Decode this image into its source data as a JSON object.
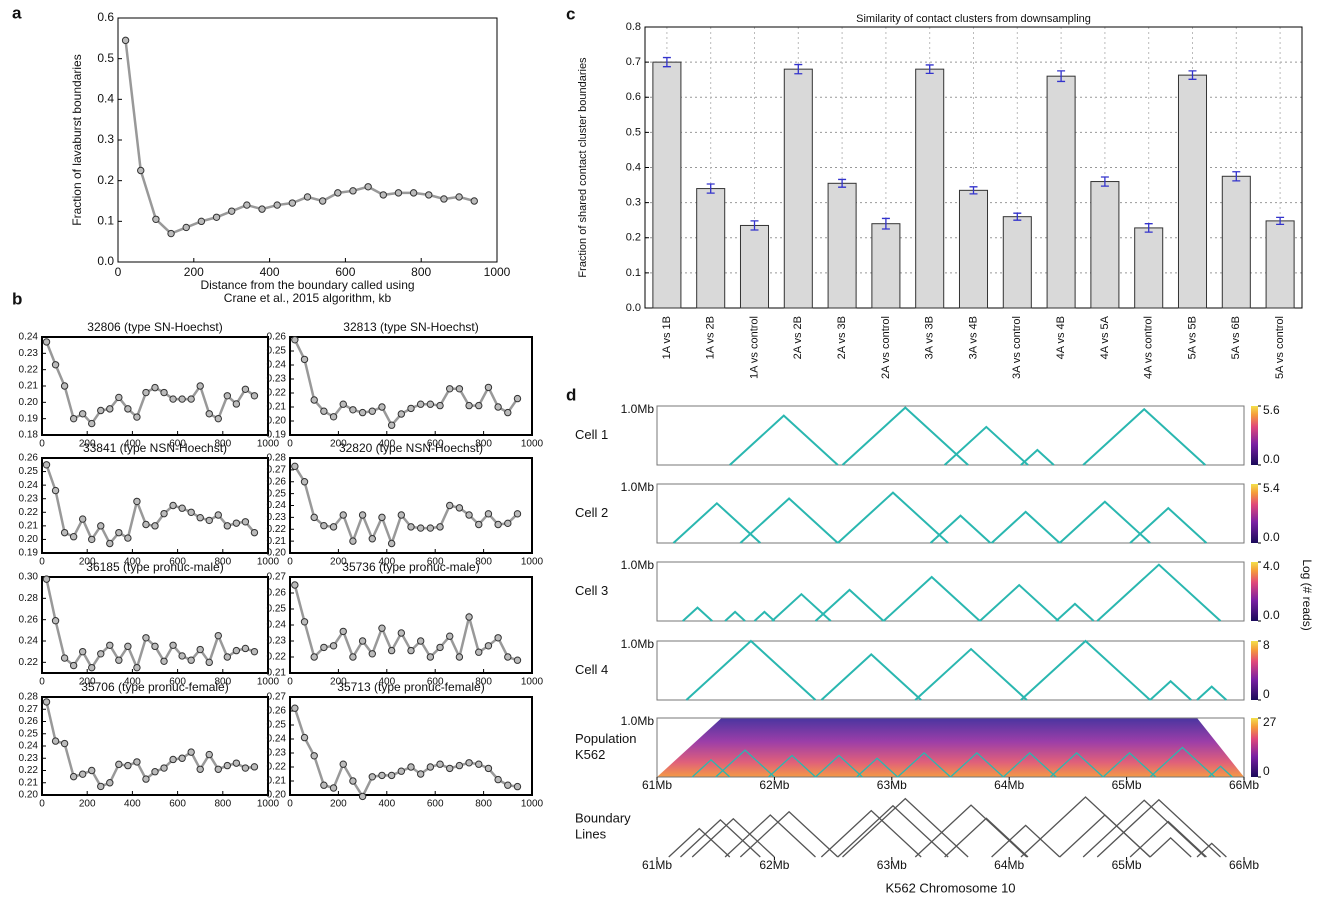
{
  "chart_data": [
    {
      "type": "line",
      "panel_label": "a",
      "ylabel": "Fraction of lavaburst boundaries",
      "xlabel": [
        "Distance from the boundary called using",
        "Crane et al., 2015 algorithm, kb"
      ],
      "x": [
        20,
        60,
        100,
        140,
        180,
        220,
        260,
        300,
        340,
        380,
        420,
        460,
        500,
        540,
        580,
        620,
        660,
        700,
        740,
        780,
        820,
        860,
        900,
        940
      ],
      "values": [
        0.545,
        0.225,
        0.105,
        0.07,
        0.085,
        0.1,
        0.11,
        0.125,
        0.14,
        0.13,
        0.14,
        0.145,
        0.16,
        0.15,
        0.17,
        0.175,
        0.185,
        0.165,
        0.17,
        0.17,
        0.165,
        0.155,
        0.16,
        0.15
      ],
      "color": "#999999",
      "xlim": [
        0,
        1000
      ],
      "xticks": [
        0,
        200,
        400,
        600,
        800,
        1000
      ],
      "ylim": [
        0,
        0.6
      ],
      "yticks": [
        {
          "value": 0,
          "label": "0.0"
        },
        0.1,
        0.2,
        0.3,
        0.4,
        0.5,
        0.6
      ]
    },
    {
      "type": "line",
      "panel_label": "b",
      "title": "32806 (type SN-Hoechst)",
      "x": [
        20,
        60,
        100,
        140,
        180,
        220,
        260,
        300,
        340,
        380,
        420,
        460,
        500,
        540,
        580,
        620,
        660,
        700,
        740,
        780,
        820,
        860,
        900,
        940
      ],
      "values": [
        0.237,
        0.223,
        0.21,
        0.19,
        0.193,
        0.187,
        0.195,
        0.196,
        0.203,
        0.196,
        0.191,
        0.206,
        0.209,
        0.206,
        0.202,
        0.202,
        0.202,
        0.21,
        0.193,
        0.19,
        0.204,
        0.199,
        0.208,
        0.204
      ],
      "color": "#999999",
      "xlim": [
        0,
        1000
      ],
      "xticks": [
        0,
        200,
        400,
        600,
        800,
        1000
      ],
      "ylim": [
        0.18,
        0.24
      ],
      "yticks": [
        0.18,
        0.19,
        {
          "value": 0.2,
          "label": "0.20"
        },
        0.21,
        0.22,
        0.23,
        0.24
      ]
    },
    {
      "type": "line",
      "title": "32813 (type SN-Hoechst)",
      "x": [
        20,
        60,
        100,
        140,
        180,
        220,
        260,
        300,
        340,
        380,
        420,
        460,
        500,
        540,
        580,
        620,
        660,
        700,
        740,
        780,
        820,
        860,
        900,
        940
      ],
      "values": [
        0.258,
        0.244,
        0.215,
        0.207,
        0.203,
        0.212,
        0.208,
        0.206,
        0.207,
        0.21,
        0.197,
        0.205,
        0.209,
        0.212,
        0.212,
        0.211,
        0.223,
        0.223,
        0.211,
        0.211,
        0.224,
        0.21,
        0.206,
        0.216
      ],
      "color": "#999999",
      "xlim": [
        0,
        1000
      ],
      "xticks": [
        0,
        200,
        400,
        600,
        800,
        1000
      ],
      "ylim": [
        0.19,
        0.26
      ],
      "yticks": [
        0.19,
        {
          "value": 0.2,
          "label": "0.20"
        },
        0.21,
        0.22,
        0.23,
        0.24,
        0.25,
        0.26
      ]
    },
    {
      "type": "line",
      "title": "33841 (type NSN-Hoechst)",
      "x": [
        20,
        60,
        100,
        140,
        180,
        220,
        260,
        300,
        340,
        380,
        420,
        460,
        500,
        540,
        580,
        620,
        660,
        700,
        740,
        780,
        820,
        860,
        900,
        940
      ],
      "values": [
        0.255,
        0.236,
        0.205,
        0.202,
        0.215,
        0.2,
        0.21,
        0.197,
        0.205,
        0.201,
        0.228,
        0.211,
        0.21,
        0.219,
        0.225,
        0.223,
        0.22,
        0.216,
        0.214,
        0.218,
        0.21,
        0.212,
        0.213,
        0.205
      ],
      "color": "#999999",
      "xlim": [
        0,
        1000
      ],
      "xticks": [
        0,
        200,
        400,
        600,
        800,
        1000
      ],
      "ylim": [
        0.19,
        0.26
      ],
      "yticks": [
        0.19,
        {
          "value": 0.2,
          "label": "0.20"
        },
        0.21,
        0.22,
        0.23,
        0.24,
        0.25,
        0.26
      ]
    },
    {
      "type": "line",
      "title": "32820 (type NSN-Hoechst)",
      "x": [
        20,
        60,
        100,
        140,
        180,
        220,
        260,
        300,
        340,
        380,
        420,
        460,
        500,
        540,
        580,
        620,
        660,
        700,
        740,
        780,
        820,
        860,
        900,
        940
      ],
      "values": [
        0.273,
        0.26,
        0.23,
        0.223,
        0.222,
        0.232,
        0.21,
        0.232,
        0.212,
        0.23,
        0.208,
        0.232,
        0.222,
        0.221,
        0.221,
        0.222,
        0.24,
        0.238,
        0.232,
        0.224,
        0.233,
        0.224,
        0.225,
        0.233
      ],
      "color": "#999999",
      "xlim": [
        0,
        1000
      ],
      "xticks": [
        0,
        200,
        400,
        600,
        800,
        1000
      ],
      "ylim": [
        0.2,
        0.28
      ],
      "yticks": [
        {
          "value": 0.2,
          "label": "0.20"
        },
        0.21,
        0.22,
        0.23,
        0.24,
        0.25,
        0.26,
        0.27,
        0.28
      ]
    },
    {
      "type": "line",
      "title": "36185 (type pronuc-male)",
      "x": [
        20,
        60,
        100,
        140,
        180,
        220,
        260,
        300,
        340,
        380,
        420,
        460,
        500,
        540,
        580,
        620,
        660,
        700,
        740,
        780,
        820,
        860,
        900,
        940
      ],
      "values": [
        0.298,
        0.259,
        0.224,
        0.217,
        0.23,
        0.215,
        0.228,
        0.236,
        0.222,
        0.235,
        0.215,
        0.243,
        0.235,
        0.221,
        0.236,
        0.226,
        0.222,
        0.232,
        0.22,
        0.245,
        0.225,
        0.231,
        0.233,
        0.23
      ],
      "color": "#999999",
      "xlim": [
        0,
        1000
      ],
      "xticks": [
        0,
        200,
        400,
        600,
        800,
        1000
      ],
      "ylim": [
        0.21,
        0.3
      ],
      "yticks": [
        0.22,
        0.24,
        0.26,
        0.28,
        {
          "value": 0.3,
          "label": "0.30"
        }
      ]
    },
    {
      "type": "line",
      "title": "35736 (type pronuc-male)",
      "x": [
        20,
        60,
        100,
        140,
        180,
        220,
        260,
        300,
        340,
        380,
        420,
        460,
        500,
        540,
        580,
        620,
        660,
        700,
        740,
        780,
        820,
        860,
        900,
        940
      ],
      "values": [
        0.265,
        0.242,
        0.22,
        0.226,
        0.227,
        0.236,
        0.22,
        0.23,
        0.222,
        0.238,
        0.224,
        0.235,
        0.224,
        0.23,
        0.22,
        0.226,
        0.233,
        0.22,
        0.245,
        0.223,
        0.227,
        0.232,
        0.22,
        0.218
      ],
      "color": "#999999",
      "xlim": [
        0,
        1000
      ],
      "xticks": [
        0,
        200,
        400,
        600,
        800,
        1000
      ],
      "ylim": [
        0.21,
        0.27
      ],
      "yticks": [
        0.21,
        0.22,
        0.23,
        0.24,
        0.25,
        0.26,
        0.27
      ]
    },
    {
      "type": "line",
      "title": "35706 (type pronuc-female)",
      "x": [
        20,
        60,
        100,
        140,
        180,
        220,
        260,
        300,
        340,
        380,
        420,
        460,
        500,
        540,
        580,
        620,
        660,
        700,
        740,
        780,
        820,
        860,
        900,
        940
      ],
      "values": [
        0.276,
        0.244,
        0.242,
        0.215,
        0.217,
        0.22,
        0.207,
        0.21,
        0.225,
        0.224,
        0.227,
        0.213,
        0.219,
        0.222,
        0.229,
        0.23,
        0.235,
        0.221,
        0.233,
        0.221,
        0.224,
        0.226,
        0.222,
        0.223
      ],
      "color": "#999999",
      "xlim": [
        0,
        1000
      ],
      "xticks": [
        0,
        200,
        400,
        600,
        800,
        1000
      ],
      "ylim": [
        0.2,
        0.28
      ],
      "yticks": [
        {
          "value": 0.2,
          "label": "0.20"
        },
        0.21,
        0.22,
        0.23,
        0.24,
        0.25,
        0.26,
        0.27,
        0.28
      ]
    },
    {
      "type": "line",
      "title": "35713 (type pronuc-female)",
      "x": [
        20,
        60,
        100,
        140,
        180,
        220,
        260,
        300,
        340,
        380,
        420,
        460,
        500,
        540,
        580,
        620,
        660,
        700,
        740,
        780,
        820,
        860,
        900,
        940
      ],
      "values": [
        0.262,
        0.241,
        0.228,
        0.207,
        0.205,
        0.222,
        0.21,
        0.199,
        0.213,
        0.214,
        0.214,
        0.217,
        0.22,
        0.215,
        0.22,
        0.222,
        0.219,
        0.221,
        0.223,
        0.222,
        0.219,
        0.211,
        0.207,
        0.206
      ],
      "color": "#999999",
      "xlim": [
        0,
        1000
      ],
      "xticks": [
        0,
        200,
        400,
        600,
        800,
        1000
      ],
      "ylim": [
        0.2,
        0.27
      ],
      "yticks": [
        {
          "value": 0.2,
          "label": "0.20"
        },
        0.21,
        0.22,
        0.23,
        0.24,
        0.25,
        0.26,
        0.27
      ]
    },
    {
      "type": "bar",
      "panel_label": "c",
      "title": "Similarity of contact clusters from downsampling",
      "ylabel": "Fraction of shared contact cluster boundaries",
      "categories": [
        "1A vs 1B",
        "1A vs 2B",
        "1A vs control",
        "2A vs 2B",
        "2A vs 3B",
        "2A vs control",
        "3A vs 3B",
        "3A vs 4B",
        "3A vs control",
        "4A vs 4B",
        "4A vs 5A",
        "4A vs control",
        "5A vs 5B",
        "5A vs 6B",
        "5A vs control"
      ],
      "values": [
        0.7,
        0.34,
        0.235,
        0.68,
        0.355,
        0.24,
        0.68,
        0.335,
        0.26,
        0.66,
        0.36,
        0.228,
        0.663,
        0.375,
        0.248
      ],
      "errors": [
        0.013,
        0.013,
        0.013,
        0.013,
        0.011,
        0.015,
        0.012,
        0.01,
        0.01,
        0.015,
        0.013,
        0.012,
        0.012,
        0.013,
        0.01
      ],
      "color": "#d9d9d9",
      "error_color": "#3333cc",
      "grid": true,
      "ylim": [
        0,
        0.8
      ],
      "yticks": [
        {
          "value": 0,
          "label": "0.0"
        },
        0.1,
        0.2,
        0.3,
        0.4,
        0.5,
        0.6,
        0.7,
        0.8
      ]
    },
    {
      "type": "domains",
      "panel_label": "d",
      "xlabel": "K562 Chromosome 10",
      "colorbar_label": "Log (# reads)",
      "xlim": [
        61,
        66
      ],
      "xticks": [
        {
          "value": 61,
          "label": "61Mb"
        },
        {
          "value": 62,
          "label": "62Mb"
        },
        {
          "value": 63,
          "label": "63Mb"
        },
        {
          "value": 64,
          "label": "64Mb"
        },
        {
          "value": 65,
          "label": "65Mb"
        },
        {
          "value": 66,
          "label": "66Mb"
        }
      ],
      "tracks": [
        {
          "label": [
            "Cell 1"
          ],
          "top_label": "1.0Mb",
          "color": "#2ab7b0",
          "clim": [
            0,
            5.6
          ],
          "cticks": [
            {
              "value": 0,
              "label": "0.0"
            },
            5.6
          ],
          "domains": [
            [
              61.62,
              62.54
            ],
            [
              62.58,
              63.65
            ],
            [
              63.45,
              64.16
            ],
            [
              64.1,
              64.38
            ],
            [
              64.63,
              65.67
            ]
          ]
        },
        {
          "label": [
            "Cell 2"
          ],
          "top_label": "1.0Mb",
          "color": "#2ab7b0",
          "clim": [
            0,
            5.4
          ],
          "cticks": [
            {
              "value": 0,
              "label": "0.0"
            },
            5.4
          ],
          "domains": [
            [
              61.14,
              61.88
            ],
            [
              61.71,
              62.54
            ],
            [
              62.54,
              63.48
            ],
            [
              63.33,
              63.84
            ],
            [
              63.85,
              64.43
            ],
            [
              64.43,
              65.2
            ],
            [
              65.03,
              65.68
            ]
          ]
        },
        {
          "label": [
            "Cell 3"
          ],
          "top_label": "1.0Mb",
          "color": "#2ab7b0",
          "clim": [
            0,
            4
          ],
          "cticks": [
            {
              "value": 0,
              "label": "0.0"
            },
            {
              "value": 4,
              "label": "4.0"
            }
          ],
          "domains": [
            [
              61.22,
              61.47
            ],
            [
              61.58,
              61.75
            ],
            [
              61.83,
              62.0
            ],
            [
              61.98,
              62.48
            ],
            [
              62.35,
              62.93
            ],
            [
              62.93,
              63.75
            ],
            [
              63.75,
              64.42
            ],
            [
              64.4,
              64.72
            ],
            [
              64.75,
              65.8
            ]
          ]
        },
        {
          "label": [
            "Cell 4"
          ],
          "top_label": "1.0Mb",
          "color": "#2ab7b0",
          "clim": [
            0,
            8
          ],
          "cticks": [
            0,
            8
          ],
          "domains": [
            [
              61.25,
              62.35
            ],
            [
              62.4,
              63.25
            ],
            [
              63.2,
              64.15
            ],
            [
              64.1,
              65.2
            ],
            [
              65.2,
              65.55
            ],
            [
              65.6,
              65.85
            ]
          ]
        },
        {
          "label": [
            "Population",
            "K562"
          ],
          "top_label": "1.0Mb",
          "color": "#2ab7b0",
          "heatmap": true,
          "clim": [
            0,
            27
          ],
          "cticks": [
            0,
            27
          ],
          "domains": [
            [
              61.3,
              61.62
            ],
            [
              61.5,
              62.0
            ],
            [
              61.95,
              62.35
            ],
            [
              62.35,
              62.75
            ],
            [
              62.7,
              63.05
            ],
            [
              63.05,
              63.5
            ],
            [
              63.5,
              63.95
            ],
            [
              63.95,
              64.4
            ],
            [
              64.35,
              64.8
            ],
            [
              64.8,
              65.25
            ],
            [
              65.2,
              65.75
            ],
            [
              65.7,
              65.9
            ]
          ]
        },
        {
          "label": [
            "Boundary",
            "Lines"
          ],
          "color": "#555555",
          "domains": [
            [
              61.1,
              61.62
            ],
            [
              61.2,
              61.88
            ],
            [
              61.3,
              62.0
            ],
            [
              61.58,
              62.35
            ],
            [
              61.71,
              62.54
            ],
            [
              62.4,
              63.25
            ],
            [
              62.54,
              63.48
            ],
            [
              62.58,
              63.65
            ],
            [
              63.2,
              64.15
            ],
            [
              63.45,
              64.16
            ],
            [
              63.85,
              64.43
            ],
            [
              64.1,
              65.2
            ],
            [
              64.43,
              65.2
            ],
            [
              64.63,
              65.67
            ],
            [
              64.75,
              65.8
            ],
            [
              65.03,
              65.68
            ],
            [
              65.2,
              65.55
            ],
            [
              65.6,
              65.85
            ]
          ]
        }
      ]
    }
  ]
}
